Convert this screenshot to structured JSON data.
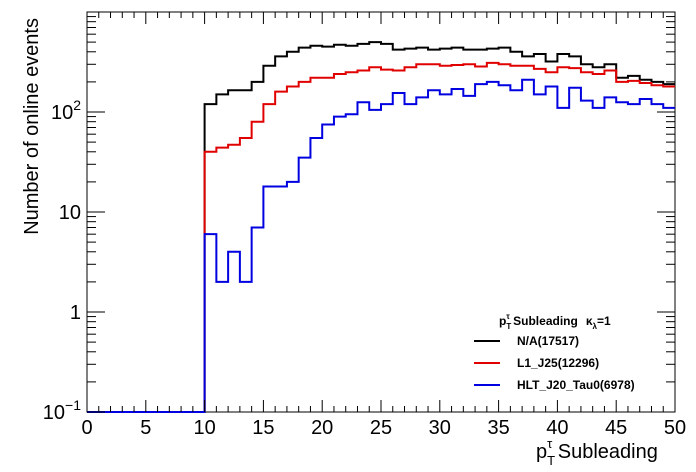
{
  "chart_data": {
    "type": "histogram-step",
    "title_sym": "p",
    "title_sub": "T",
    "title_sup": "τ",
    "title_rest": " Subleading",
    "legend_kappa": "κ",
    "legend_kappa_sub": "λ",
    "legend_kappa_val": "=1",
    "xlabel_sym": "p",
    "xlabel_sub": "T",
    "xlabel_sup": "τ",
    "xlabel_rest": " Subleading",
    "ylabel": "Number of online events",
    "xlim": [
      0,
      50
    ],
    "ylim_log10": [
      -1,
      3
    ],
    "bin_width": 1,
    "xticks": [
      0,
      5,
      10,
      15,
      20,
      25,
      30,
      35,
      40,
      45,
      50
    ],
    "xtick_labels": [
      "0",
      "5",
      "10",
      "15",
      "20",
      "25",
      "30",
      "35",
      "40",
      "45",
      "50"
    ],
    "yticks": [
      {
        "value": 0.1,
        "base": "10",
        "exp": "−1"
      },
      {
        "value": 1,
        "base": "1",
        "exp": ""
      },
      {
        "value": 10,
        "base": "10",
        "exp": ""
      },
      {
        "value": 100,
        "base": "10",
        "exp": "2"
      }
    ],
    "series": [
      {
        "name": "N/A(17517)",
        "color": "#000000",
        "values": [
          0.1,
          0.1,
          0.1,
          0.1,
          0.1,
          0.1,
          0.1,
          0.1,
          0.1,
          0.1,
          120,
          150,
          165,
          165,
          200,
          290,
          360,
          400,
          440,
          460,
          450,
          470,
          460,
          480,
          500,
          480,
          420,
          430,
          440,
          420,
          430,
          440,
          420,
          420,
          430,
          440,
          400,
          360,
          380,
          320,
          380,
          360,
          300,
          280,
          300,
          220,
          230,
          210,
          200,
          190
        ]
      },
      {
        "name": "L1_J25(12296)",
        "color": "#e00000",
        "values": [
          0.1,
          0.1,
          0.1,
          0.1,
          0.1,
          0.1,
          0.1,
          0.1,
          0.1,
          0.1,
          40,
          44,
          47,
          55,
          80,
          120,
          160,
          180,
          200,
          220,
          220,
          240,
          250,
          260,
          280,
          265,
          260,
          280,
          300,
          300,
          290,
          295,
          300,
          285,
          310,
          300,
          290,
          290,
          270,
          250,
          280,
          275,
          250,
          240,
          260,
          200,
          205,
          195,
          185,
          180
        ]
      },
      {
        "name": "HLT_J20_Tau0(6978)",
        "color": "#0000e0",
        "values": [
          0.1,
          0.1,
          0.1,
          0.1,
          0.1,
          0.1,
          0.1,
          0.1,
          0.1,
          0.1,
          6,
          2,
          4,
          2,
          7,
          18,
          18,
          20,
          35,
          55,
          75,
          90,
          95,
          125,
          105,
          120,
          155,
          120,
          140,
          165,
          150,
          170,
          145,
          190,
          200,
          185,
          165,
          210,
          150,
          180,
          110,
          175,
          130,
          110,
          140,
          125,
          120,
          135,
          120,
          110
        ]
      }
    ]
  }
}
